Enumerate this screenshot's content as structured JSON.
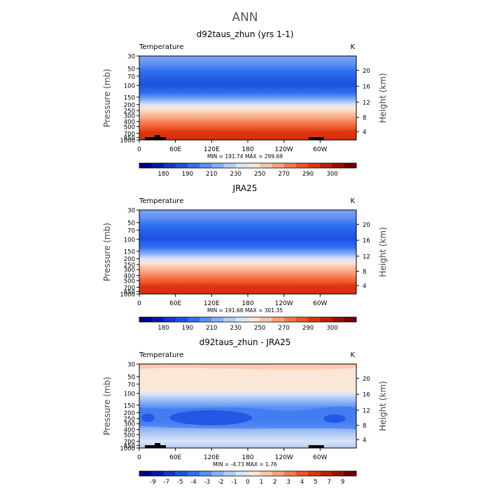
{
  "page_title": "ANN",
  "chart_data": [
    {
      "type": "heatmap",
      "title": "d92taus_zhun (yrs 1-1)",
      "variable": "Temperature",
      "units": "K",
      "ylabel": "Pressure (mb)",
      "y2label": "Height (km)",
      "pressure_ticks": [
        "30",
        "50",
        "70",
        "100",
        "150",
        "200",
        "250",
        "300",
        "400",
        "500",
        "700",
        "850",
        "1000"
      ],
      "height_ticks": [
        "20",
        "16",
        "12",
        "8",
        "4"
      ],
      "x_ticks": [
        "0",
        "60E",
        "120E",
        "180",
        "120W",
        "60W"
      ],
      "stats": "MIN = 191.74   MAX = 299.69",
      "colorbar_labels": [
        "180",
        "190",
        "210",
        "230",
        "250",
        "270",
        "290",
        "300"
      ],
      "colorbar_colors": [
        "#00007f",
        "#0418a8",
        "#1435c8",
        "#1e50e0",
        "#2f6ff0",
        "#5a8ff4",
        "#87aff6",
        "#b3ccf5",
        "#d9e5f7",
        "#fbe6d7",
        "#fac8a8",
        "#f8a27c",
        "#f57a50",
        "#ee5428",
        "#dd3410",
        "#bf1e06",
        "#961000",
        "#6b0000"
      ]
    },
    {
      "type": "heatmap",
      "title": "JRA25",
      "variable": "Temperature",
      "units": "K",
      "ylabel": "Pressure (mb)",
      "y2label": "Height (km)",
      "pressure_ticks": [
        "30",
        "50",
        "70",
        "100",
        "150",
        "200",
        "250",
        "300",
        "400",
        "500",
        "700",
        "850",
        "1000"
      ],
      "height_ticks": [
        "20",
        "16",
        "12",
        "8",
        "4"
      ],
      "x_ticks": [
        "0",
        "60E",
        "120E",
        "180",
        "120W",
        "60W"
      ],
      "stats": "MIN = 191.68   MAX = 301.35",
      "colorbar_labels": [
        "180",
        "190",
        "210",
        "230",
        "250",
        "270",
        "290",
        "300"
      ],
      "colorbar_colors": [
        "#00007f",
        "#0418a8",
        "#1435c8",
        "#1e50e0",
        "#2f6ff0",
        "#5a8ff4",
        "#87aff6",
        "#b3ccf5",
        "#d9e5f7",
        "#fbe6d7",
        "#fac8a8",
        "#f8a27c",
        "#f57a50",
        "#ee5428",
        "#dd3410",
        "#bf1e06",
        "#961000",
        "#6b0000"
      ]
    },
    {
      "type": "heatmap",
      "title": "d92taus_zhun - JRA25",
      "variable": "Temperature",
      "units": "K",
      "ylabel": "Pressure (mb)",
      "y2label": "Height (km)",
      "pressure_ticks": [
        "30",
        "50",
        "70",
        "100",
        "150",
        "200",
        "250",
        "300",
        "400",
        "500",
        "700",
        "850",
        "1000"
      ],
      "height_ticks": [
        "20",
        "16",
        "12",
        "8",
        "4"
      ],
      "x_ticks": [
        "0",
        "60E",
        "120E",
        "180",
        "120W",
        "60W"
      ],
      "stats": "MIN =   -4.73   MAX =    1.76",
      "colorbar_labels": [
        "-9",
        "-7",
        "-5",
        "-4",
        "-3",
        "-2",
        "-1",
        "0",
        "1",
        "2",
        "3",
        "4",
        "5",
        "7",
        "9"
      ],
      "colorbar_colors": [
        "#00007f",
        "#0418a8",
        "#1435c8",
        "#1e50e0",
        "#2f6ff0",
        "#5a8ff4",
        "#87aff6",
        "#b3ccf5",
        "#d9e5f7",
        "#fbe6d7",
        "#fac8a8",
        "#f8a27c",
        "#f57a50",
        "#ee5428",
        "#dd3410",
        "#bf1e06",
        "#961000",
        "#6b0000"
      ]
    }
  ]
}
